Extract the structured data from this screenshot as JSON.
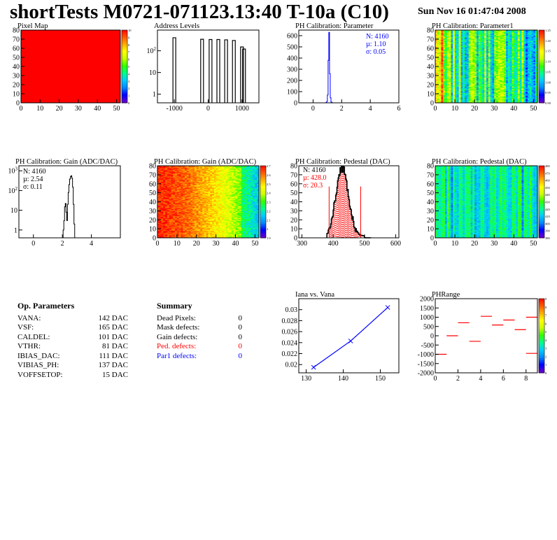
{
  "header": {
    "title": "shortTests M0721-071123.13:40 T-10a (C10)",
    "date": "Sun Nov 16 01:47:04 2008"
  },
  "colors": {
    "background": "#ffffff",
    "data_blue": "#0000ff",
    "data_red": "#ff0000",
    "hist_black": "#000000",
    "palette": [
      "#6600cc",
      "#0000ff",
      "#0088ff",
      "#00ccff",
      "#00ff88",
      "#33ff00",
      "#ccff00",
      "#ffff00",
      "#ffaa00",
      "#ff5500",
      "#ff0000"
    ]
  },
  "chart_data": [
    {
      "id": "pixel_map",
      "type": "heatmap",
      "title": "Pixel Map",
      "xlim": [
        0,
        52
      ],
      "ylim": [
        0,
        80
      ],
      "xticks": [
        "0",
        "10",
        "20",
        "30",
        "40",
        "50"
      ],
      "yticks": [
        "0",
        "10",
        "20",
        "30",
        "40",
        "50",
        "60",
        "70",
        "80"
      ],
      "value_all": 10,
      "zticks": [
        "0",
        "1",
        "2",
        "3",
        "4",
        "5",
        "6",
        "7",
        "8",
        "9",
        "10"
      ]
    },
    {
      "id": "address_levels",
      "type": "bar",
      "title": "Address Levels",
      "xlim": [
        -1500,
        1500
      ],
      "ylim": [
        0.4,
        900
      ],
      "yscale": "log",
      "xticks": [
        "-1000",
        "0",
        "1000"
      ],
      "yticks": [
        "1",
        "10",
        "10^2"
      ],
      "peaks": [
        {
          "x": -1000,
          "y": 400
        },
        {
          "x": -180,
          "y": 340
        },
        {
          "x": 70,
          "y": 330
        },
        {
          "x": 300,
          "y": 330
        },
        {
          "x": 530,
          "y": 320
        },
        {
          "x": 760,
          "y": 300
        },
        {
          "x": 1000,
          "y": 150
        },
        {
          "x": 1060,
          "y": 120
        }
      ]
    },
    {
      "id": "ph_param",
      "type": "bar",
      "title": "PH Calibration: Parameter",
      "xlim": [
        -1,
        6
      ],
      "ylim": [
        0,
        650
      ],
      "xticks": [
        "0",
        "2",
        "4",
        "6"
      ],
      "yticks": [
        "0",
        "100",
        "200",
        "300",
        "400",
        "500",
        "600"
      ],
      "stats": {
        "n": "N: 4160",
        "mu": "µ: 1.10",
        "sigma": "σ: 0.05"
      },
      "bins": [
        {
          "x": 0.9,
          "y": 3
        },
        {
          "x": 0.95,
          "y": 12
        },
        {
          "x": 1.0,
          "y": 70
        },
        {
          "x": 1.05,
          "y": 380
        },
        {
          "x": 1.1,
          "y": 630
        },
        {
          "x": 1.15,
          "y": 260
        },
        {
          "x": 1.2,
          "y": 45
        },
        {
          "x": 1.25,
          "y": 8
        },
        {
          "x": 1.3,
          "y": 2
        }
      ]
    },
    {
      "id": "ph_param1",
      "type": "heatmap",
      "title": "PH Calibration: Parameter1",
      "xlim": [
        0,
        52
      ],
      "ylim": [
        0,
        80
      ],
      "xticks": [
        "0",
        "10",
        "20",
        "30",
        "40",
        "50"
      ],
      "yticks": [
        "0",
        "10",
        "20",
        "30",
        "40",
        "50",
        "60",
        "70",
        "80"
      ],
      "zticks": [
        "0.90",
        "0.95",
        "1.00",
        "1.05",
        "1.10",
        "1.15",
        "1.20",
        "1.25"
      ]
    },
    {
      "id": "gain",
      "type": "bar",
      "title": "PH Calibration: Gain (ADC/DAC)",
      "xlim": [
        -1,
        6
      ],
      "ylim": [
        0.4,
        1800
      ],
      "yscale": "log",
      "xticks": [
        "0",
        "2",
        "4"
      ],
      "yticks": [
        "1",
        "10",
        "10^2",
        "10^3"
      ],
      "stats": {
        "n": "N: 4160",
        "mu": "µ: 2.54",
        "sigma": "σ: 0.11"
      },
      "bins": [
        {
          "x": 2.05,
          "y": 1
        },
        {
          "x": 2.1,
          "y": 3
        },
        {
          "x": 2.15,
          "y": 15
        },
        {
          "x": 2.2,
          "y": 22
        },
        {
          "x": 2.25,
          "y": 8
        },
        {
          "x": 2.3,
          "y": 3
        },
        {
          "x": 2.35,
          "y": 20
        },
        {
          "x": 2.4,
          "y": 80
        },
        {
          "x": 2.45,
          "y": 200
        },
        {
          "x": 2.5,
          "y": 380
        },
        {
          "x": 2.55,
          "y": 500
        },
        {
          "x": 2.6,
          "y": 560
        },
        {
          "x": 2.65,
          "y": 420
        },
        {
          "x": 2.7,
          "y": 150
        },
        {
          "x": 2.75,
          "y": 20
        },
        {
          "x": 2.8,
          "y": 2
        }
      ]
    },
    {
      "id": "gain_map",
      "type": "heatmap",
      "title": "PH Calibration: Gain (ADC/DAC)",
      "xlim": [
        0,
        52
      ],
      "ylim": [
        0,
        80
      ],
      "xticks": [
        "0",
        "10",
        "20",
        "30",
        "40",
        "50"
      ],
      "yticks": [
        "0",
        "10",
        "20",
        "30",
        "40",
        "50",
        "60",
        "70",
        "80"
      ],
      "zticks": [
        "1.9",
        "2",
        "2.1",
        "2.2",
        "2.3",
        "2.4",
        "2.5",
        "2.6",
        "2.7"
      ]
    },
    {
      "id": "pedestal",
      "type": "bar",
      "title": "PH Calibration: Pedestal (DAC)",
      "xlim": [
        290,
        610
      ],
      "ylim": [
        0,
        80
      ],
      "xticks": [
        "300",
        "400",
        "500",
        "600"
      ],
      "yticks": [
        "0",
        "10",
        "20",
        "30",
        "40",
        "50",
        "60",
        "70",
        "80"
      ],
      "stats": {
        "n": "N: 4160",
        "mu": "µ: 428.0",
        "sigma": "σ: 20.3"
      },
      "cut_lines": [
        387,
        488
      ],
      "cut_height": 57
    },
    {
      "id": "pedestal_map",
      "type": "heatmap",
      "title": "PH Calibration: Pedestal (DAC)",
      "xlim": [
        0,
        52
      ],
      "ylim": [
        0,
        80
      ],
      "xticks": [
        "0",
        "10",
        "20",
        "30",
        "40",
        "50"
      ],
      "yticks": [
        "0",
        "10",
        "20",
        "30",
        "40",
        "50",
        "60",
        "70",
        "80"
      ],
      "zticks": [
        "380",
        "390",
        "400",
        "410",
        "420",
        "430",
        "440",
        "450",
        "460",
        "470",
        "480"
      ]
    },
    {
      "id": "iana_vana",
      "type": "line",
      "title": "Iana vs. Vana",
      "xlim": [
        128,
        155
      ],
      "ylim": [
        0.0185,
        0.032
      ],
      "xticks": [
        "130",
        "140",
        "150"
      ],
      "yticks": [
        "0.02",
        "0.022",
        "0.024",
        "0.026",
        "0.028",
        "0.03"
      ],
      "points": [
        {
          "x": 132,
          "y": 0.0195
        },
        {
          "x": 142,
          "y": 0.0243
        },
        {
          "x": 152,
          "y": 0.0304
        }
      ]
    },
    {
      "id": "phrange",
      "type": "scatter",
      "title": "PHRange",
      "xlim": [
        0,
        9
      ],
      "ylim": [
        -2000,
        2000
      ],
      "xticks": [
        "0",
        "2",
        "4",
        "6",
        "8"
      ],
      "yticks": [
        "-2000",
        "-1500",
        "-1000",
        "-500",
        "0",
        "500",
        "1000",
        "1500",
        "2000"
      ],
      "zticks": [
        "0",
        "1",
        "2",
        "3",
        "4",
        "5",
        "6",
        "7",
        "8",
        "9"
      ],
      "segments": [
        {
          "x": 0.5,
          "y": -1000
        },
        {
          "x": 1.5,
          "y": 0
        },
        {
          "x": 2.5,
          "y": 700
        },
        {
          "x": 3.5,
          "y": -300
        },
        {
          "x": 4.5,
          "y": 1050
        },
        {
          "x": 5.5,
          "y": 580
        },
        {
          "x": 6.5,
          "y": 850
        },
        {
          "x": 7.5,
          "y": 330
        },
        {
          "x": 8.5,
          "y": 1000
        },
        {
          "x": 8.5,
          "y": -950
        }
      ]
    }
  ],
  "op_params": {
    "title": "Op. Parameters",
    "rows": [
      {
        "name": "VANA:",
        "value": "142 DAC"
      },
      {
        "name": "VSF:",
        "value": "165 DAC"
      },
      {
        "name": "CALDEL:",
        "value": "101 DAC"
      },
      {
        "name": "VTHR:",
        "value": "81 DAC"
      },
      {
        "name": "IBIAS_DAC:",
        "value": "111 DAC"
      },
      {
        "name": "VIBIAS_PH:",
        "value": "137 DAC"
      },
      {
        "name": "VOFFSETOP:",
        "value": "15 DAC"
      }
    ]
  },
  "summary": {
    "title": "Summary",
    "rows": [
      {
        "name": "Dead Pixels:",
        "value": "0",
        "color": "#000000"
      },
      {
        "name": "Mask defects:",
        "value": "0",
        "color": "#000000"
      },
      {
        "name": "Gain defects:",
        "value": "0",
        "color": "#000000"
      },
      {
        "name": "Ped. defects:",
        "value": "0",
        "color": "#ff0000"
      },
      {
        "name": "Par1 defects:",
        "value": "0",
        "color": "#0000ff"
      }
    ]
  }
}
